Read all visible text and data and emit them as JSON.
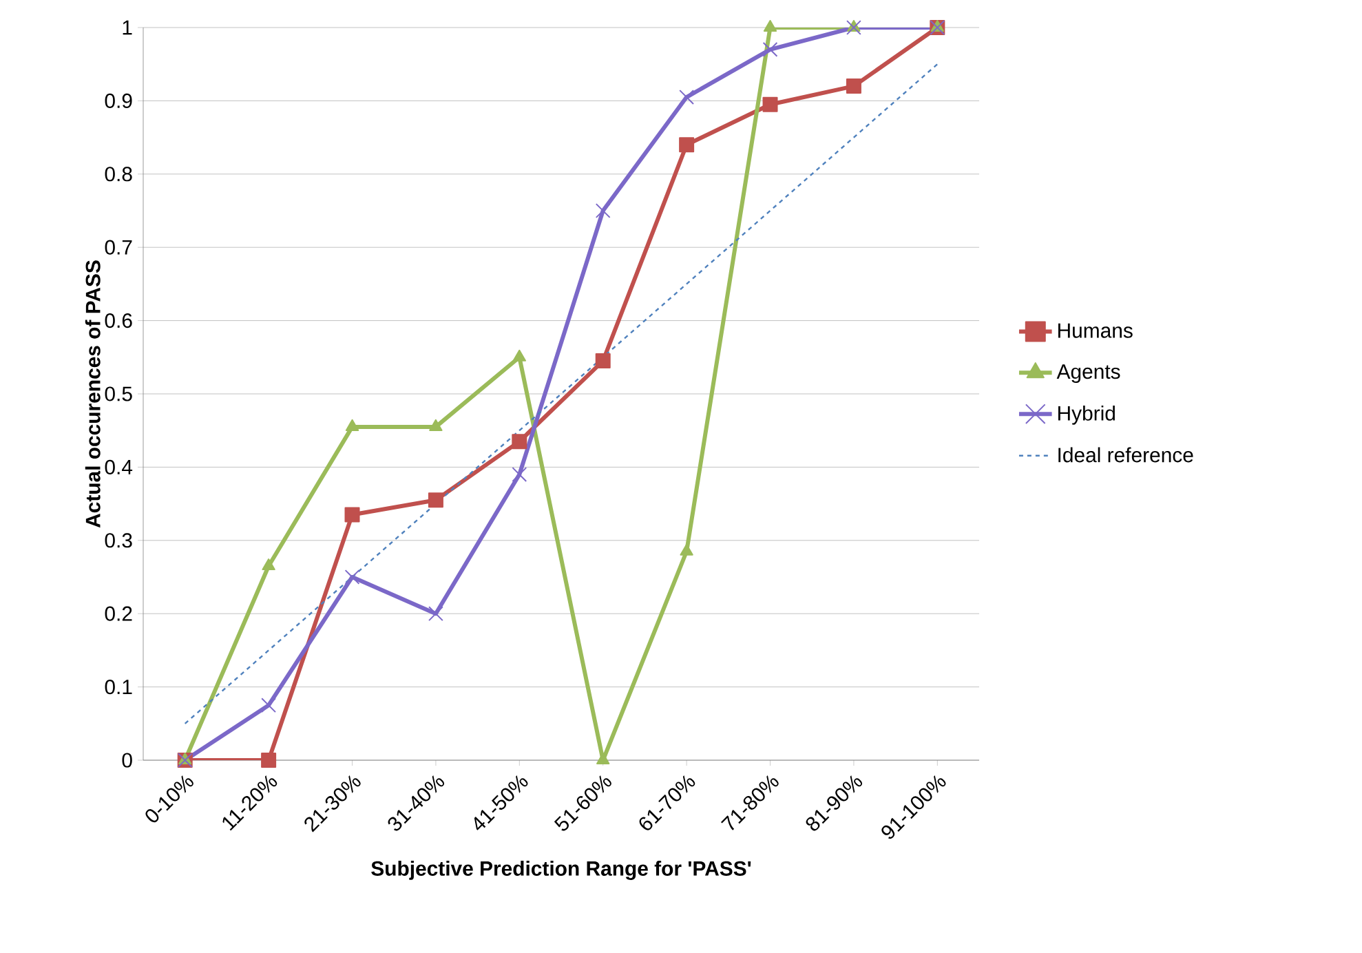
{
  "chart_data": {
    "type": "line",
    "xlabel": "Subjective Prediction Range for 'PASS'",
    "ylabel": "Actual occurences of PASS",
    "categories": [
      "0-10%",
      "11-20%",
      "21-30%",
      "31-40%",
      "41-50%",
      "51-60%",
      "61-70%",
      "71-80%",
      "81-90%",
      "91-100%"
    ],
    "series": [
      {
        "name": "Humans",
        "color": "#c0504d",
        "marker": "square",
        "values": [
          0,
          0,
          0.335,
          0.355,
          0.435,
          0.545,
          0.84,
          0.895,
          0.92,
          1
        ]
      },
      {
        "name": "Agents",
        "color": "#9bbb59",
        "marker": "triangle",
        "values": [
          0,
          0.265,
          0.455,
          0.455,
          0.55,
          0,
          0.285,
          1,
          1,
          1
        ]
      },
      {
        "name": "Hybrid",
        "color": "#7b68c8",
        "marker": "cross",
        "values": [
          0,
          0.075,
          0.25,
          0.2,
          0.39,
          0.75,
          0.905,
          0.97,
          1,
          1
        ]
      },
      {
        "name": "Ideal reference",
        "color": "#4f81bd",
        "marker": "none",
        "line_style": "dashed",
        "values": [
          0.05,
          0.15,
          0.25,
          0.35,
          0.45,
          0.55,
          0.65,
          0.75,
          0.85,
          0.95
        ]
      }
    ],
    "ylim": [
      0,
      1
    ],
    "yticks": [
      0,
      0.1,
      0.2,
      0.3,
      0.4,
      0.5,
      0.6,
      0.7,
      0.8,
      0.9,
      1
    ],
    "grid": "y",
    "legend": "right"
  }
}
